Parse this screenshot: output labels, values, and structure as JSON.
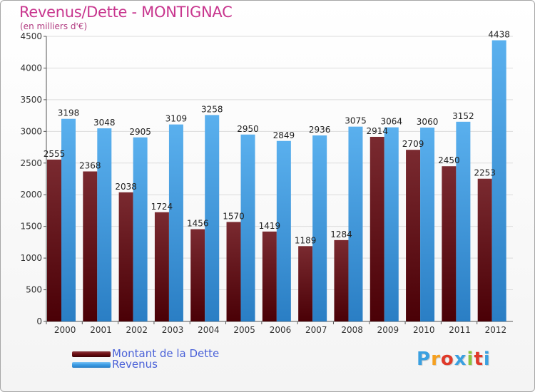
{
  "title": "Revenus/Dette - MONTIGNAC",
  "subtitle": "(en milliers d'€)",
  "logo": {
    "text": "Proxiti",
    "letter_colors": [
      "#3aa0e0",
      "#f5a020",
      "#e03a2a",
      "#3aa0e0",
      "#8cc63e",
      "#e03a2a",
      "#3aa0e0"
    ]
  },
  "legend": {
    "dette_label": "Montant de la Dette",
    "revenus_label": "Revenus",
    "dette_color": "#6e0d12",
    "revenus_color": "#3d9ee6"
  },
  "chart_data": {
    "type": "bar",
    "categories": [
      "2000",
      "2001",
      "2002",
      "2003",
      "2004",
      "2005",
      "2006",
      "2007",
      "2008",
      "2009",
      "2010",
      "2011",
      "2012"
    ],
    "series": [
      {
        "name": "Montant de la Dette",
        "values": [
          2555,
          2368,
          2038,
          1724,
          1456,
          1570,
          1419,
          1189,
          1284,
          2914,
          2709,
          2450,
          2253
        ],
        "labels": [
          "2555",
          "2368",
          "2038",
          "1724",
          "1456",
          "1570",
          "1419",
          "1189",
          "1284",
          "2914",
          "2709",
          "2450",
          "2253"
        ],
        "color": "#6e0d12"
      },
      {
        "name": "Revenus",
        "values": [
          3198,
          3048,
          2905,
          3109,
          3258,
          2950,
          2849,
          2936,
          3075,
          3064,
          3060,
          3152,
          4438
        ],
        "labels": [
          "3198",
          "3048",
          "2905",
          "3109",
          "3258",
          "2950",
          "2849",
          "2936",
          "3075",
          "3064",
          "3060",
          "3152",
          "4438"
        ],
        "color": "#3d9ee6"
      }
    ],
    "yticks": [
      0,
      500,
      1000,
      1500,
      2000,
      2500,
      3000,
      3500,
      4000,
      4500
    ],
    "ylim": [
      0,
      4500
    ],
    "grid": true,
    "legend_position": "bottom-left"
  }
}
